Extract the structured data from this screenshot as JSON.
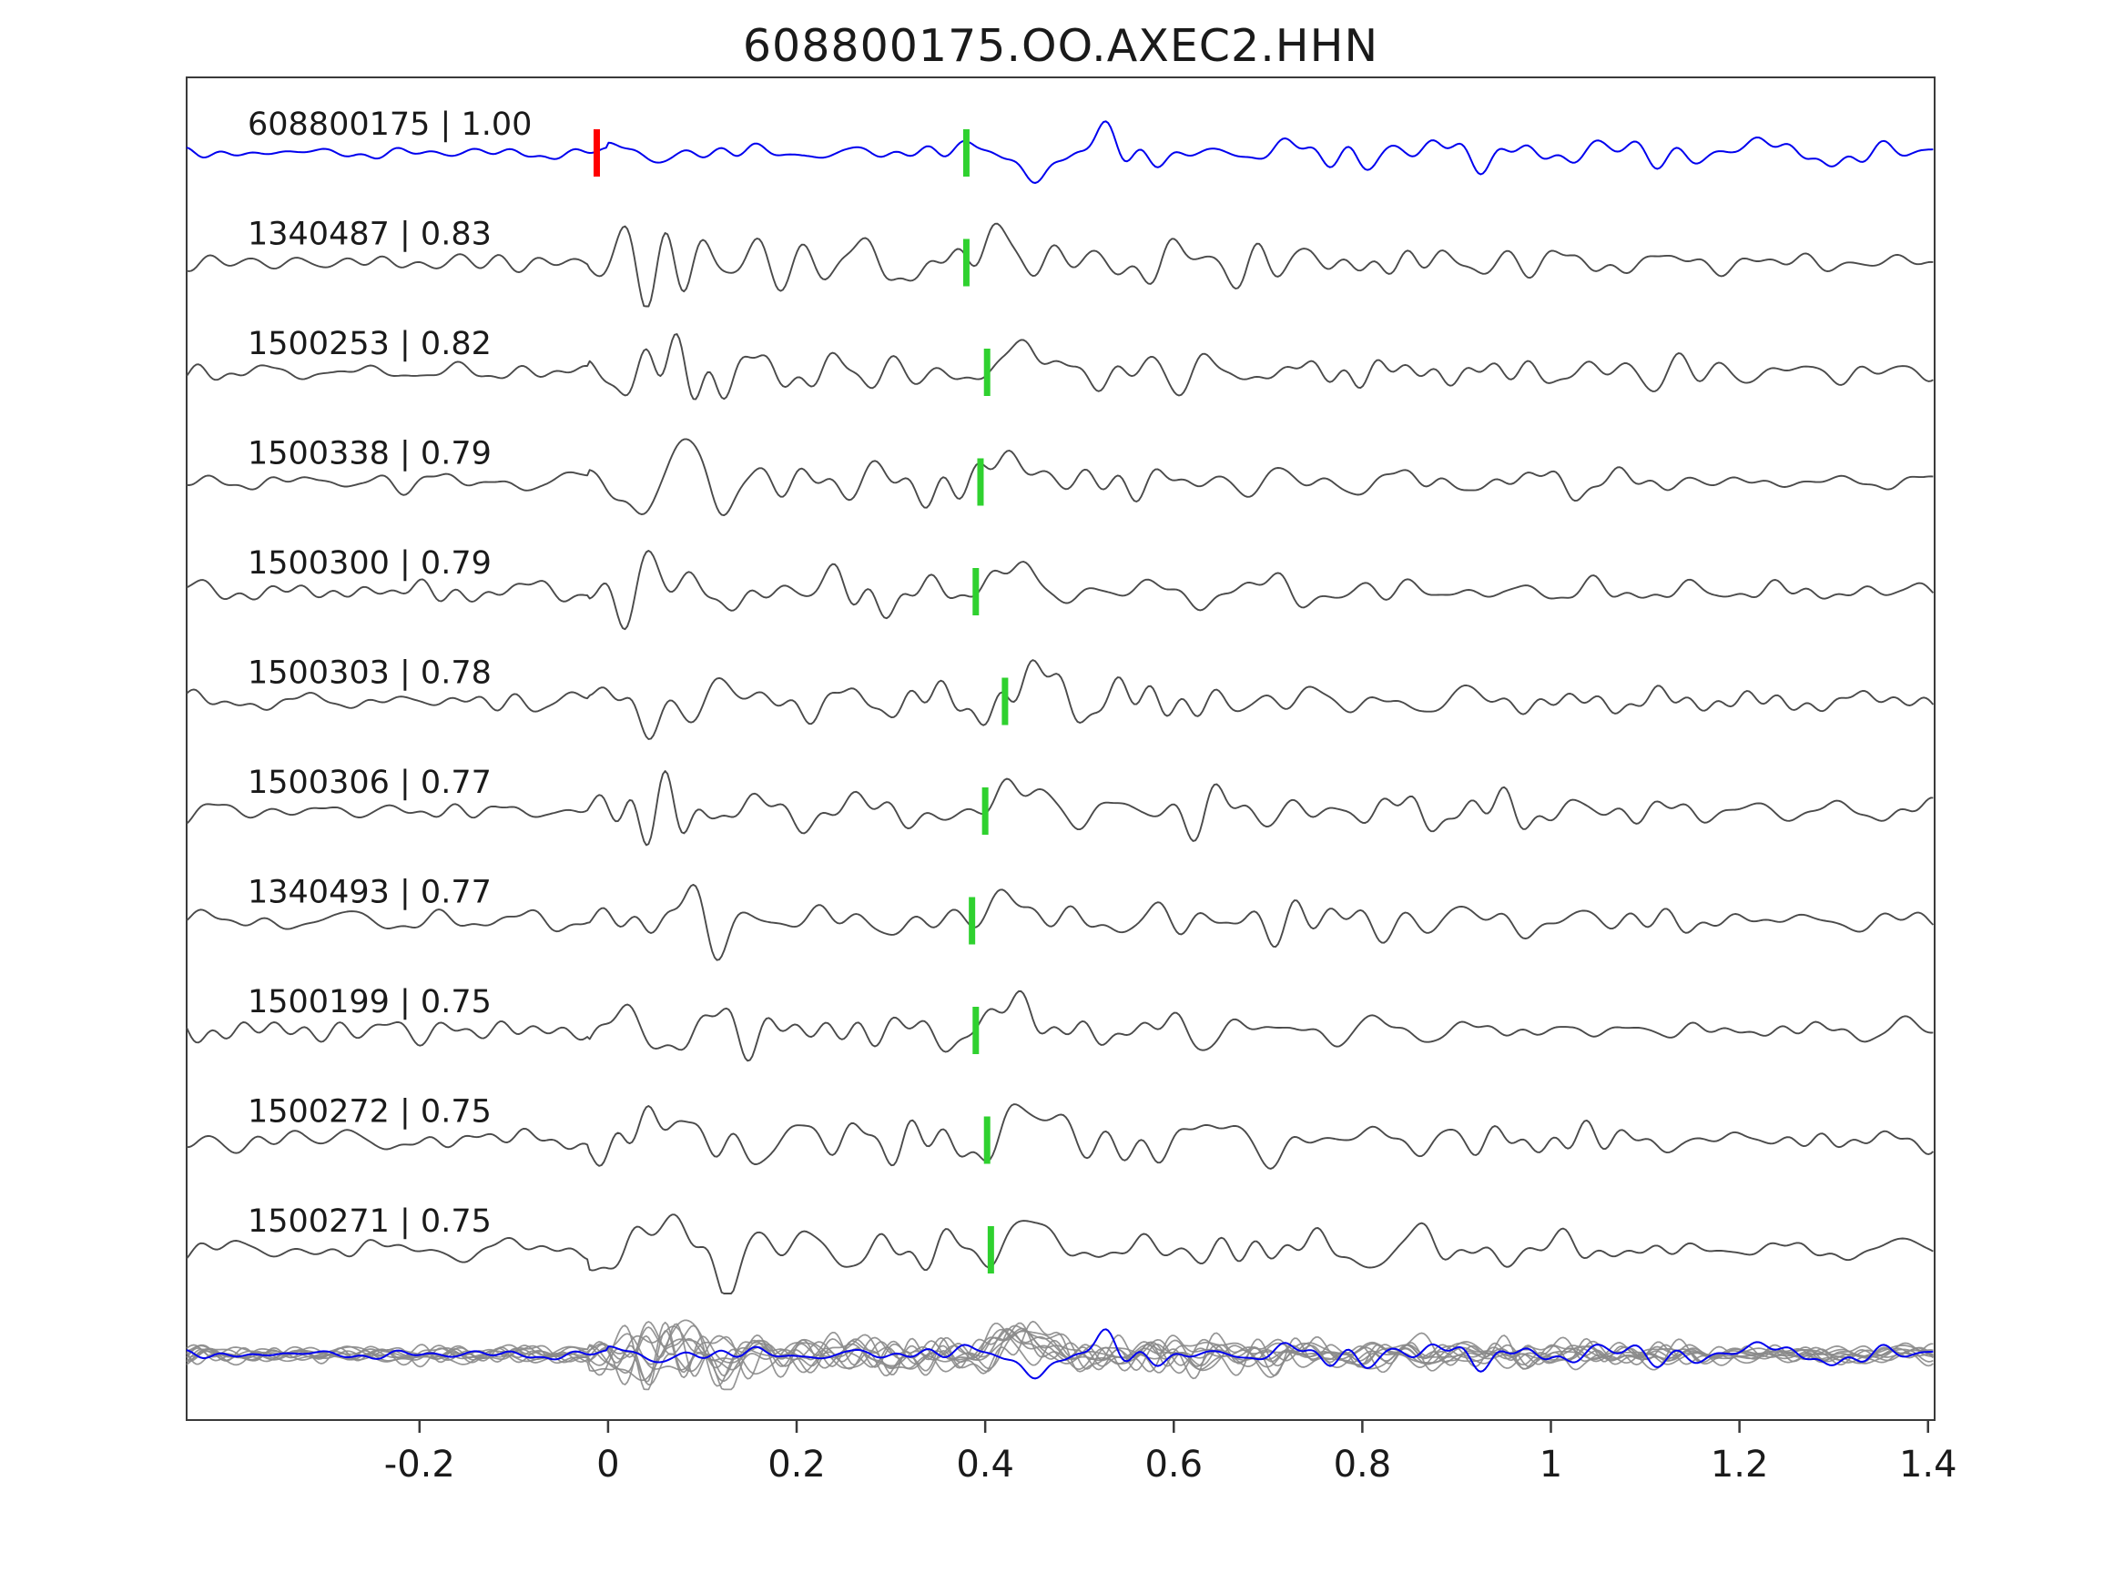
{
  "title": "608800175.OO.AXEC2.HHN",
  "chart_data": {
    "type": "line",
    "title": "608800175.OO.AXEC2.HHN",
    "xlabel": "",
    "ylabel": "",
    "xlim": [
      -0.447,
      1.407
    ],
    "grid": false,
    "legend": "none",
    "x_ticks": [
      {
        "value": -0.2,
        "label": "-0.2"
      },
      {
        "value": 0,
        "label": "0"
      },
      {
        "value": 0.2,
        "label": "0.2"
      },
      {
        "value": 0.4,
        "label": "0.4"
      },
      {
        "value": 0.6,
        "label": "0.6"
      },
      {
        "value": 0.8,
        "label": "0.8"
      },
      {
        "value": 1,
        "label": "1"
      },
      {
        "value": 1.2,
        "label": "1.2"
      },
      {
        "value": 1.4,
        "label": "1.4"
      }
    ],
    "colors": {
      "reference_trace": "#0000ee",
      "match_trace": "#4a4a4a",
      "overlay_trace": "#8a8a8a",
      "reference_pick": "#ff0000",
      "match_pick": "#2fd12f",
      "axis": "#3a3a3a",
      "text": "#1a1a1a"
    },
    "traces": [
      {
        "id": "608800175",
        "correlation": "1.00",
        "label": "608800175 | 1.00",
        "role": "reference",
        "picks": [
          {
            "time": -0.012,
            "color_key": "reference_pick"
          },
          {
            "time": 0.38,
            "color_key": "match_pick"
          }
        ],
        "seed": 101
      },
      {
        "id": "1340487",
        "correlation": "0.83",
        "label": "1340487 | 0.83",
        "role": "match",
        "picks": [
          {
            "time": 0.38,
            "color_key": "match_pick"
          }
        ],
        "seed": 202
      },
      {
        "id": "1500253",
        "correlation": "0.82",
        "label": "1500253 | 0.82",
        "role": "match",
        "picks": [
          {
            "time": 0.402,
            "color_key": "match_pick"
          }
        ],
        "seed": 303
      },
      {
        "id": "1500338",
        "correlation": "0.79",
        "label": "1500338 | 0.79",
        "role": "match",
        "picks": [
          {
            "time": 0.395,
            "color_key": "match_pick"
          }
        ],
        "seed": 404
      },
      {
        "id": "1500300",
        "correlation": "0.79",
        "label": "1500300 | 0.79",
        "role": "match",
        "picks": [
          {
            "time": 0.39,
            "color_key": "match_pick"
          }
        ],
        "seed": 505
      },
      {
        "id": "1500303",
        "correlation": "0.78",
        "label": "1500303 | 0.78",
        "role": "match",
        "picks": [
          {
            "time": 0.421,
            "color_key": "match_pick"
          }
        ],
        "seed": 606
      },
      {
        "id": "1500306",
        "correlation": "0.77",
        "label": "1500306 | 0.77",
        "role": "match",
        "picks": [
          {
            "time": 0.4,
            "color_key": "match_pick"
          }
        ],
        "seed": 707
      },
      {
        "id": "1340493",
        "correlation": "0.77",
        "label": "1340493 | 0.77",
        "role": "match",
        "picks": [
          {
            "time": 0.386,
            "color_key": "match_pick"
          }
        ],
        "seed": 808
      },
      {
        "id": "1500199",
        "correlation": "0.75",
        "label": "1500199 | 0.75",
        "role": "match",
        "picks": [
          {
            "time": 0.39,
            "color_key": "match_pick"
          }
        ],
        "seed": 909
      },
      {
        "id": "1500272",
        "correlation": "0.75",
        "label": "1500272 | 0.75",
        "role": "match",
        "picks": [
          {
            "time": 0.402,
            "color_key": "match_pick"
          }
        ],
        "seed": 1010
      },
      {
        "id": "1500271",
        "correlation": "0.75",
        "label": "1500271 | 0.75",
        "role": "match",
        "picks": [
          {
            "time": 0.406,
            "color_key": "match_pick"
          }
        ],
        "seed": 1111
      }
    ],
    "overlay_row": {
      "description": "all traces superimposed at bottom",
      "includes_reference": true
    }
  }
}
